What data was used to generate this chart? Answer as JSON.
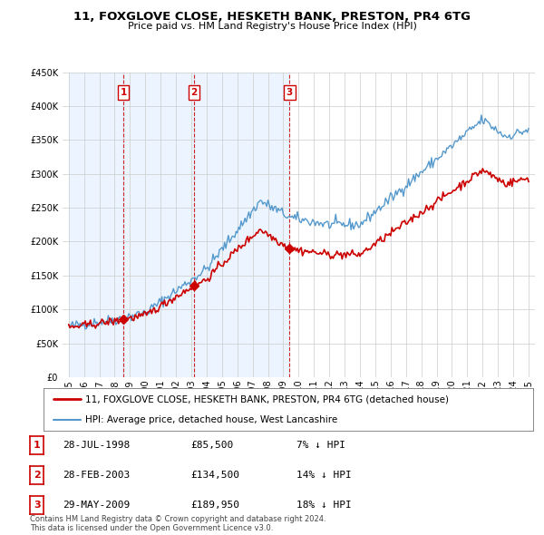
{
  "title": "11, FOXGLOVE CLOSE, HESKETH BANK, PRESTON, PR4 6TG",
  "subtitle": "Price paid vs. HM Land Registry's House Price Index (HPI)",
  "ylim": [
    0,
    450000
  ],
  "yticks": [
    0,
    50000,
    100000,
    150000,
    200000,
    250000,
    300000,
    350000,
    400000,
    450000
  ],
  "sales": [
    {
      "date_num": 1998.57,
      "price": 85500,
      "label": "1"
    },
    {
      "date_num": 2003.16,
      "price": 134500,
      "label": "2"
    },
    {
      "date_num": 2009.41,
      "price": 189950,
      "label": "3"
    }
  ],
  "legend_line1": "11, FOXGLOVE CLOSE, HESKETH BANK, PRESTON, PR4 6TG (detached house)",
  "legend_line2": "HPI: Average price, detached house, West Lancashire",
  "table_rows": [
    {
      "num": "1",
      "date": "28-JUL-1998",
      "price": "£85,500",
      "hpi": "7% ↓ HPI"
    },
    {
      "num": "2",
      "date": "28-FEB-2003",
      "price": "£134,500",
      "hpi": "14% ↓ HPI"
    },
    {
      "num": "3",
      "date": "29-MAY-2009",
      "price": "£189,950",
      "hpi": "18% ↓ HPI"
    }
  ],
  "footnote1": "Contains HM Land Registry data © Crown copyright and database right 2024.",
  "footnote2": "This data is licensed under the Open Government Licence v3.0.",
  "red_color": "#cc0000",
  "blue_color": "#5599cc",
  "shade_color": "#ddeeff",
  "grid_color": "#cccccc",
  "bg_color": "#ffffff"
}
